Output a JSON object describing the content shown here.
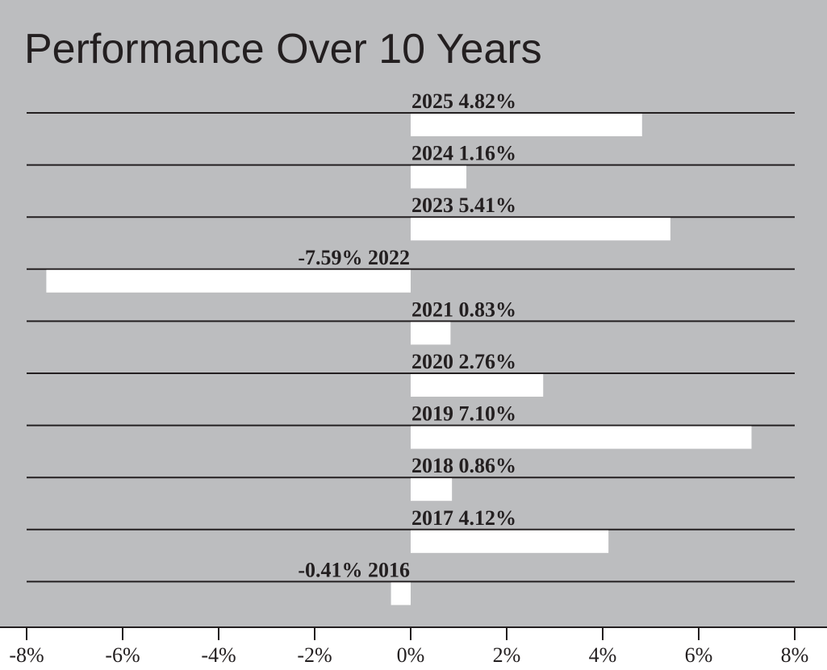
{
  "chart_data": {
    "type": "bar",
    "orientation": "horizontal",
    "title": "Performance Over 10 Years",
    "categories": [
      "2025",
      "2024",
      "2023",
      "2022",
      "2021",
      "2020",
      "2019",
      "2018",
      "2017",
      "2016"
    ],
    "values": [
      4.82,
      1.16,
      5.41,
      -7.59,
      0.83,
      2.76,
      7.1,
      0.86,
      4.12,
      -0.41
    ],
    "data_labels": [
      "4.82%",
      "1.16%",
      "5.41%",
      "-7.59%",
      "0.83%",
      "2.76%",
      "7.10%",
      "0.86%",
      "4.12%",
      "-0.41%"
    ],
    "xlim": [
      -8,
      8
    ],
    "xticks": [
      -8,
      -6,
      -4,
      -2,
      0,
      2,
      4,
      6,
      8
    ],
    "xtick_labels": [
      "-8%",
      "-6%",
      "-4%",
      "-2%",
      "0%",
      "2%",
      "4%",
      "6%",
      "8%"
    ],
    "xlabel": "",
    "ylabel": "",
    "grid": true,
    "legend": "none",
    "colors": {
      "plot_background": "#bcbdbf",
      "bar": "#ffffff",
      "line": "#231f20",
      "text": "#231f20"
    }
  }
}
